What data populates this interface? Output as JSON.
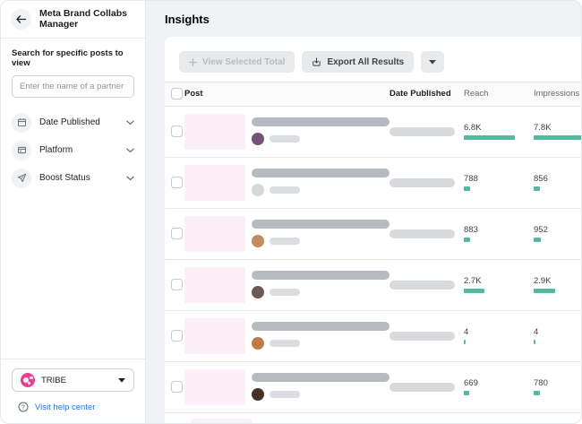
{
  "sidebar": {
    "title": "Meta Brand Collabs Manager",
    "search_label": "Search for specific posts to view",
    "search_placeholder": "Enter the name of a partner",
    "filters": [
      {
        "label": "Date Published",
        "icon": "calendar-icon"
      },
      {
        "label": "Platform",
        "icon": "platform-icon"
      },
      {
        "label": "Boost Status",
        "icon": "boost-icon"
      }
    ],
    "workspace": {
      "name": "TRIBE"
    },
    "help_label": "Visit help center"
  },
  "main": {
    "title": "Insights",
    "toolbar": {
      "view_selected": "View Selected Total",
      "export": "Export All Results"
    },
    "table": {
      "columns": {
        "post": "Post",
        "date": "Date Published",
        "reach": "Reach",
        "impressions": "Impressions"
      },
      "max_value": 7800,
      "rows": [
        {
          "reach_label": "6.8K",
          "reach": 6800,
          "impressions_label": "7.8K",
          "impressions": 7800,
          "avatar_color": "#75527a"
        },
        {
          "reach_label": "788",
          "reach": 788,
          "impressions_label": "856",
          "impressions": 856,
          "avatar_color": "#d7d7d7"
        },
        {
          "reach_label": "883",
          "reach": 883,
          "impressions_label": "952",
          "impressions": 952,
          "avatar_color": "#c28d5e"
        },
        {
          "reach_label": "2.7K",
          "reach": 2700,
          "impressions_label": "2.9K",
          "impressions": 2900,
          "avatar_color": "#6d5a4e"
        },
        {
          "reach_label": "4",
          "reach": 4,
          "impressions_label": "4",
          "impressions": 4,
          "avatar_color": "#c07a43"
        },
        {
          "reach_label": "669",
          "reach": 669,
          "impressions_label": "780",
          "impressions": 780,
          "avatar_color": "#45332a"
        }
      ]
    }
  },
  "colors": {
    "accent_teal": "#53b9a1",
    "brand_pink": "#ee3d8f",
    "link_blue": "#1877f2",
    "thumbnail_pink": "#fceff7"
  }
}
